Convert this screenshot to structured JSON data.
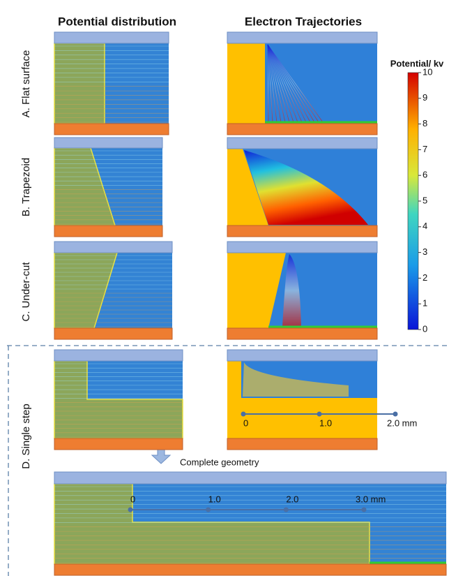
{
  "headings": [
    "Potential distribution",
    "Electron Trajectories"
  ],
  "rows": [
    "A. Flat surface",
    "B. Trapezoid",
    "C. Under-cut",
    "D. Single step"
  ],
  "colorbar": {
    "title": "Potential/ kv",
    "range": [
      0,
      10
    ],
    "ticks": [
      0,
      1,
      2,
      3,
      4,
      5,
      6,
      7,
      8,
      9,
      10
    ]
  },
  "scale_bars": [
    {
      "ticks": [
        {
          "value": 0,
          "label": "0"
        },
        {
          "value": 1,
          "label": "1.0"
        },
        {
          "value": 2,
          "label": "2.0 mm"
        }
      ]
    },
    {
      "ticks": [
        {
          "value": 0,
          "label": "0"
        },
        {
          "value": 1,
          "label": "1.0"
        },
        {
          "value": 2,
          "label": "2.0"
        },
        {
          "value": 3,
          "label": "3.0 mm"
        }
      ]
    }
  ],
  "caption": "Complete geometry"
}
